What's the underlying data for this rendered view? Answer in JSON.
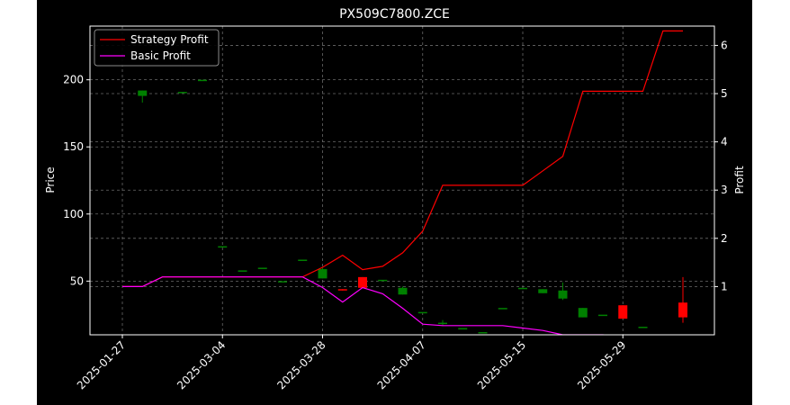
{
  "chart_data": {
    "type": "candlestick_with_lines",
    "title": "PX509C7800.ZCE",
    "ylabel_left": "Price",
    "ylabel_right": "Profit",
    "xlabel": "",
    "ylim_left": [
      10,
      240
    ],
    "ylim_right": [
      0.0,
      6.4
    ],
    "y_ticks_left": [
      50,
      100,
      150,
      200
    ],
    "y_ticks_right": [
      1,
      2,
      3,
      4,
      5,
      6
    ],
    "x_tick_labels": [
      "2025-01-27",
      "2025-03-04",
      "2025-03-28",
      "2025-04-07",
      "2025-05-15",
      "2025-05-29"
    ],
    "x_tick_index": [
      0,
      5,
      10,
      15,
      20,
      25
    ],
    "n_sessions": 29,
    "grid": true,
    "legend_position": "upper-left",
    "background": "#000000",
    "candles": [
      {
        "i": 1,
        "o": 188,
        "h": 192,
        "l": 183,
        "c": 192
      },
      {
        "i": 3,
        "o": 191,
        "h": 191,
        "l": 191,
        "c": 191
      },
      {
        "i": 4,
        "o": 200,
        "h": 200,
        "l": 200,
        "c": 200
      },
      {
        "i": 5,
        "o": 76,
        "h": 76,
        "l": 76,
        "c": 76
      },
      {
        "i": 6,
        "o": 58,
        "h": 58,
        "l": 58,
        "c": 58
      },
      {
        "i": 7,
        "o": 60,
        "h": 60,
        "l": 60,
        "c": 60
      },
      {
        "i": 8,
        "o": 50,
        "h": 50,
        "l": 50,
        "c": 50
      },
      {
        "i": 9,
        "o": 66,
        "h": 66,
        "l": 66,
        "c": 66
      },
      {
        "i": 10,
        "o": 52,
        "h": 60,
        "l": 52,
        "c": 59
      },
      {
        "i": 11,
        "o": 44,
        "h": 44,
        "l": 43,
        "c": 43
      },
      {
        "i": 12,
        "o": 53,
        "h": 53,
        "l": 45,
        "c": 45
      },
      {
        "i": 13,
        "o": 51,
        "h": 51,
        "l": 51,
        "c": 51
      },
      {
        "i": 14,
        "o": 40,
        "h": 46,
        "l": 40,
        "c": 45
      },
      {
        "i": 15,
        "o": 27,
        "h": 27,
        "l": 27,
        "c": 27
      },
      {
        "i": 16,
        "o": 18,
        "h": 21,
        "l": 17,
        "c": 19
      },
      {
        "i": 17,
        "o": 15,
        "h": 15,
        "l": 15,
        "c": 15
      },
      {
        "i": 18,
        "o": 12,
        "h": 12,
        "l": 12,
        "c": 12
      },
      {
        "i": 19,
        "o": 30,
        "h": 30,
        "l": 30,
        "c": 30
      },
      {
        "i": 20,
        "o": 45,
        "h": 45,
        "l": 45,
        "c": 45
      },
      {
        "i": 21,
        "o": 41,
        "h": 44,
        "l": 41,
        "c": 44
      },
      {
        "i": 22,
        "o": 37,
        "h": 49,
        "l": 36,
        "c": 43
      },
      {
        "i": 23,
        "o": 23,
        "h": 30,
        "l": 23,
        "c": 30
      },
      {
        "i": 24,
        "o": 25,
        "h": 25,
        "l": 25,
        "c": 25
      },
      {
        "i": 25,
        "o": 32,
        "h": 32,
        "l": 22,
        "c": 22
      },
      {
        "i": 26,
        "o": 16,
        "h": 16,
        "l": 16,
        "c": 16
      },
      {
        "i": 28,
        "o": 34,
        "h": 53,
        "l": 19,
        "c": 23
      }
    ],
    "series": [
      {
        "name": "Strategy Profit",
        "color": "#ff0000",
        "axis": "right",
        "x": [
          0,
          1,
          2,
          3,
          4,
          5,
          6,
          7,
          8,
          9,
          10,
          11,
          12,
          13,
          14,
          15,
          16,
          17,
          18,
          19,
          20,
          21,
          22,
          23,
          24,
          25,
          26,
          27,
          28
        ],
        "values": [
          1.0,
          1.0,
          1.2,
          1.2,
          1.2,
          1.2,
          1.2,
          1.2,
          1.2,
          1.2,
          1.4,
          1.65,
          1.35,
          1.42,
          1.7,
          2.15,
          3.1,
          3.1,
          3.1,
          3.1,
          3.1,
          3.4,
          3.7,
          5.05,
          5.05,
          5.05,
          5.05,
          6.3,
          6.3
        ]
      },
      {
        "name": "Basic Profit",
        "color": "#ff00ff",
        "axis": "right",
        "x": [
          0,
          1,
          2,
          3,
          4,
          5,
          6,
          7,
          8,
          9,
          10,
          11,
          12,
          13,
          14,
          15,
          16,
          17,
          18,
          19,
          20,
          21,
          22,
          23,
          24,
          25,
          26,
          27,
          28
        ],
        "values": [
          1.0,
          1.0,
          1.2,
          1.2,
          1.2,
          1.2,
          1.2,
          1.2,
          1.2,
          1.2,
          0.98,
          0.68,
          0.98,
          0.85,
          0.55,
          0.22,
          0.19,
          0.19,
          0.19,
          0.19,
          0.14,
          0.09,
          0.0,
          0.0,
          0.0,
          -0.03,
          -0.2,
          -0.25,
          -0.3
        ]
      }
    ]
  }
}
